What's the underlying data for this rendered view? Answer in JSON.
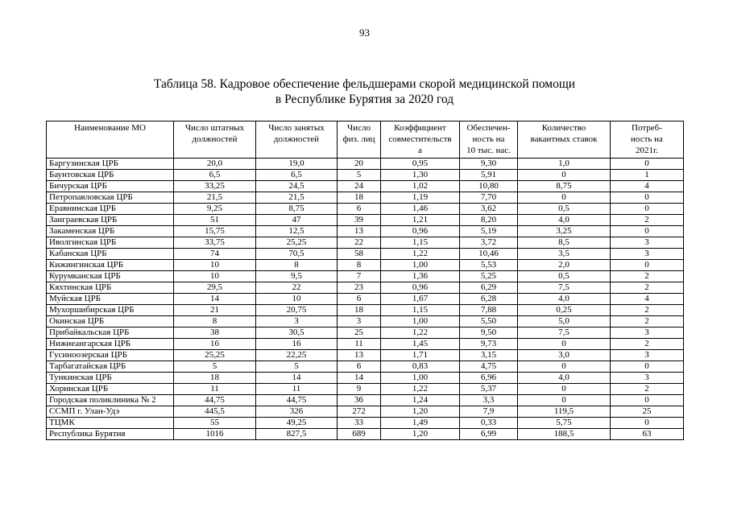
{
  "page": {
    "number": "93"
  },
  "title": {
    "line1": "Таблица 58. Кадровое обеспечение фельдшерами скорой медицинской помощи",
    "line2": "в Республике Бурятия за 2020 год"
  },
  "table": {
    "columns": [
      "Наименование МО",
      "Число штатных\nдолжностей",
      "Число занятых\nдолжностей",
      "Число\nфиз. лиц",
      "Коэффициент\nсовместительств\nа",
      "Обеспечен-\nность на\n10 тыс. нас.",
      "Количество\nвакантных ставок",
      "Потреб-\nность на\n2021г."
    ],
    "rows": [
      [
        "Баргузинская ЦРБ",
        "20,0",
        "19,0",
        "20",
        "0,95",
        "9,30",
        "1,0",
        "0"
      ],
      [
        "Баунтовская ЦРБ",
        "6,5",
        "6,5",
        "5",
        "1,30",
        "5,91",
        "0",
        "1"
      ],
      [
        "Бичурская ЦРБ",
        "33,25",
        "24,5",
        "24",
        "1,02",
        "10,80",
        "8,75",
        "4"
      ],
      [
        "Петропавловская ЦРБ",
        "21,5",
        "21,5",
        "18",
        "1,19",
        "7,70",
        "0",
        "0"
      ],
      [
        "Еравнинская ЦРБ",
        "9,25",
        "8,75",
        "6",
        "1,46",
        "3,62",
        "0,5",
        "0"
      ],
      [
        "Заиграевская ЦРБ",
        "51",
        "47",
        "39",
        "1,21",
        "8,20",
        "4,0",
        "2"
      ],
      [
        "Закаменская ЦРБ",
        "15,75",
        "12,5",
        "13",
        "0,96",
        "5,19",
        "3,25",
        "0"
      ],
      [
        "Иволгинская ЦРБ",
        "33,75",
        "25,25",
        "22",
        "1,15",
        "3,72",
        "8,5",
        "3"
      ],
      [
        "Кабанская ЦРБ",
        "74",
        "70,5",
        "58",
        "1,22",
        "10,46",
        "3,5",
        "3"
      ],
      [
        "Кижингинская ЦРБ",
        "10",
        "8",
        "8",
        "1,00",
        "5,53",
        "2,0",
        "0"
      ],
      [
        "Курумканская ЦРБ",
        "10",
        "9,5",
        "7",
        "1,36",
        "5,25",
        "0,5",
        "2"
      ],
      [
        "Кяхтинская ЦРБ",
        "29,5",
        "22",
        "23",
        "0,96",
        "6,29",
        "7,5",
        "2"
      ],
      [
        "Муйская ЦРБ",
        "14",
        "10",
        "6",
        "1,67",
        "6,28",
        "4,0",
        "4"
      ],
      [
        "Мухоршибирская ЦРБ",
        "21",
        "20,75",
        "18",
        "1,15",
        "7,88",
        "0,25",
        "2"
      ],
      [
        "Окинская ЦРБ",
        "8",
        "3",
        "3",
        "1,00",
        "5,50",
        "5,0",
        "2"
      ],
      [
        "Прибайкальская ЦРБ",
        "38",
        "30,5",
        "25",
        "1,22",
        "9,50",
        "7,5",
        "3"
      ],
      [
        "Нижнеангарская ЦРБ",
        "16",
        "16",
        "11",
        "1,45",
        "9,73",
        "0",
        "2"
      ],
      [
        "Гусиноозерская ЦРБ",
        "25,25",
        "22,25",
        "13",
        "1,71",
        "3,15",
        "3,0",
        "3"
      ],
      [
        "Тарбагатайская ЦРБ",
        "5",
        "5",
        "6",
        "0,83",
        "4,75",
        "0",
        "0"
      ],
      [
        "Тункинская ЦРБ",
        "18",
        "14",
        "14",
        "1,00",
        "6,96",
        "4,0",
        "3"
      ],
      [
        "Хоринская ЦРБ",
        "11",
        "11",
        "9",
        "1,22",
        "5,37",
        "0",
        "2"
      ],
      [
        "Городская поликлиника № 2",
        "44,75",
        "44,75",
        "36",
        "1,24",
        "3,3",
        "0",
        "0"
      ],
      [
        "ССМП г. Улан-Удэ",
        "445,5",
        "326",
        "272",
        "1,20",
        "7,9",
        "119,5",
        "25"
      ],
      [
        "ТЦМК",
        "55",
        "49,25",
        "33",
        "1,49",
        "0,33",
        "5,75",
        "0"
      ],
      [
        "Республика Бурятия",
        "1016",
        "827,5",
        "689",
        "1,20",
        "6,99",
        "188,5",
        "63"
      ]
    ]
  }
}
